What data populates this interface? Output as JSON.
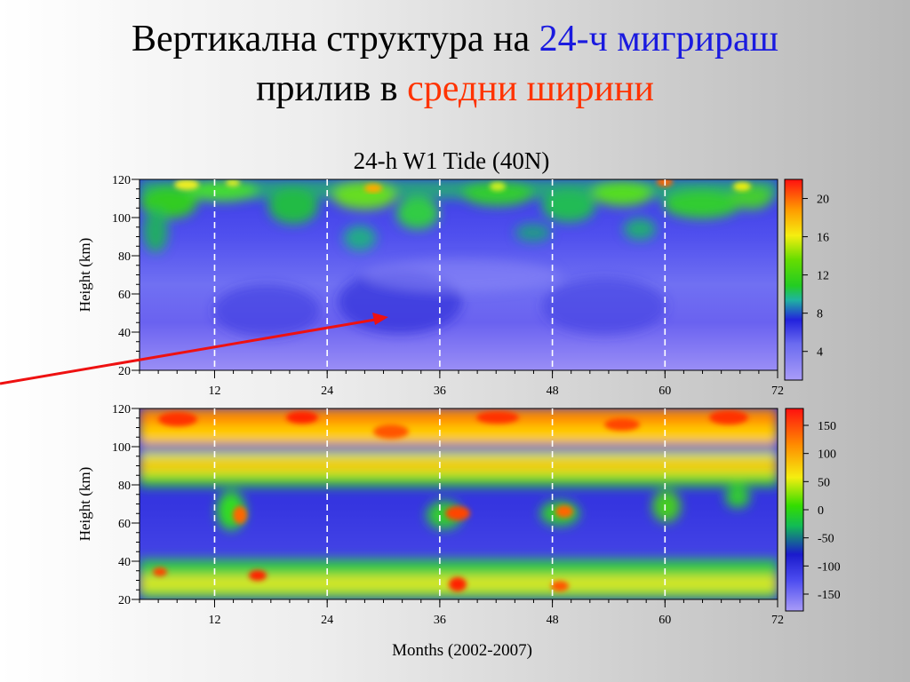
{
  "slide": {
    "title_part1": "Вертикална структура на ",
    "title_part2": "24-ч мигрираш",
    "title_part3": "прилив в ",
    "title_part4": "средни ширини"
  },
  "colors": {
    "title_blue": "#1a1adf",
    "title_red": "#ff3300",
    "arrow": "#ee1111"
  },
  "chart_data": [
    {
      "type": "heatmap",
      "title": "24-h W1 Tide  (40N)",
      "ylabel": "Height  (km)",
      "xlabel": "",
      "xlim": [
        4,
        72
      ],
      "ylim": [
        20,
        120
      ],
      "x_ticks": [
        12,
        24,
        36,
        48,
        60,
        72
      ],
      "y_ticks": [
        20,
        40,
        60,
        80,
        100,
        120
      ],
      "dashed_x_lines": [
        12,
        24,
        36,
        48,
        60
      ],
      "colorbar": {
        "ticks": [
          4,
          8,
          12,
          16,
          20
        ],
        "range": [
          1,
          22
        ]
      }
    },
    {
      "type": "heatmap",
      "title": "",
      "ylabel": "Height  (km)",
      "xlabel": "Months  (2002-2007)",
      "xlim": [
        4,
        72
      ],
      "ylim": [
        20,
        120
      ],
      "x_ticks": [
        12,
        24,
        36,
        48,
        60,
        72
      ],
      "y_ticks": [
        20,
        40,
        60,
        80,
        100,
        120
      ],
      "dashed_x_lines": [
        12,
        24,
        36,
        48,
        60
      ],
      "colorbar": {
        "ticks": [
          150,
          100,
          50,
          0,
          -50,
          -100,
          -150
        ],
        "range": [
          -180,
          180
        ]
      }
    }
  ]
}
